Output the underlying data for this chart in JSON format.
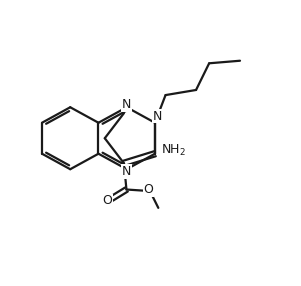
{
  "background": "#ffffff",
  "line_color": "#1a1a1a",
  "line_width": 1.6,
  "font_size": 9.0,
  "figsize": [
    3.01,
    2.86
  ],
  "dpi": 100,
  "xlim": [
    -1,
    11
  ],
  "ylim": [
    -1,
    11
  ]
}
